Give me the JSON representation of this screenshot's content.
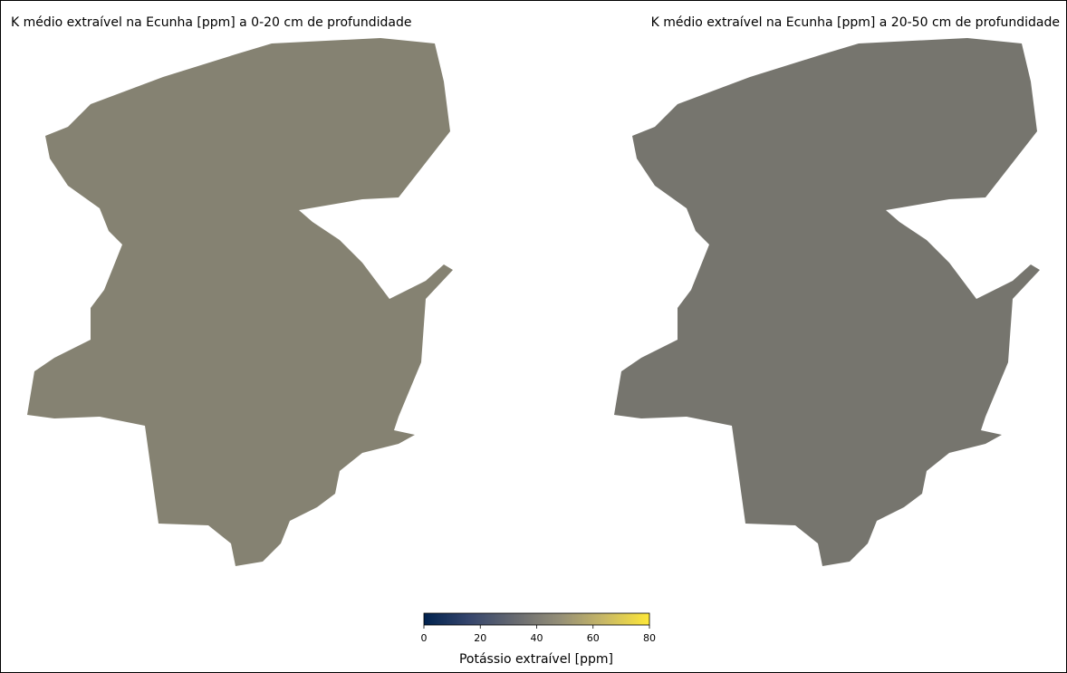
{
  "panels": [
    {
      "title": "K médio extraível na Ecunha [ppm] a 0-20 cm de profundidade",
      "color": "#858272"
    },
    {
      "title": "K médio extraível na Ecunha [ppm] a 20-50 cm de profundidade",
      "color": "#76756e"
    }
  ],
  "colorbar": {
    "label": "Potássio extraível [ppm]",
    "lim": [
      0,
      80
    ],
    "ticks": [
      0,
      20,
      40,
      60,
      80
    ],
    "colormap": [
      "#00224e",
      "#35456c",
      "#666970",
      "#948e77",
      "#c8b866",
      "#fee838"
    ]
  }
}
